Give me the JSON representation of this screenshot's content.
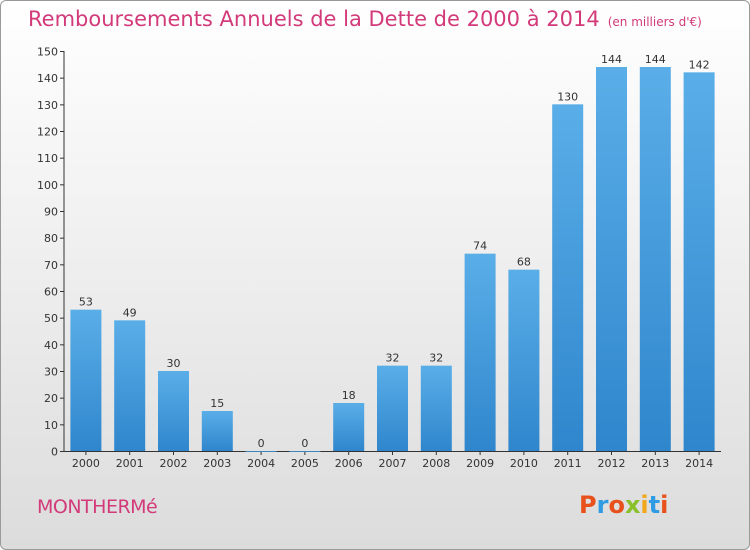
{
  "chart_data": {
    "type": "bar",
    "title": "Remboursements Annuels de la Dette de 2000 à 2014",
    "unit_note": "(en milliers d'€)",
    "categories": [
      "2000",
      "2001",
      "2002",
      "2003",
      "2004",
      "2005",
      "2006",
      "2007",
      "2008",
      "2009",
      "2010",
      "2011",
      "2012",
      "2013",
      "2014"
    ],
    "values": [
      53,
      49,
      30,
      15,
      0,
      0,
      18,
      32,
      32,
      74,
      68,
      130,
      144,
      144,
      142
    ],
    "ylim": [
      0,
      150
    ],
    "yticks": [
      0,
      10,
      20,
      30,
      40,
      50,
      60,
      70,
      80,
      90,
      100,
      110,
      120,
      130,
      140,
      150
    ],
    "grid": false,
    "bar_color": "#2f86cc",
    "bar_color_light": "#5aaee8"
  },
  "footer": {
    "city": "MONTHERMé",
    "logo": "Proxiti",
    "logo_colors": [
      "#e8501c",
      "#2e9be3",
      "#e8501c",
      "#8ac12a",
      "#f2a81d",
      "#2e9be3",
      "#e8501c"
    ]
  },
  "colors": {
    "title": "#d23a7a",
    "axis": "#333333"
  }
}
